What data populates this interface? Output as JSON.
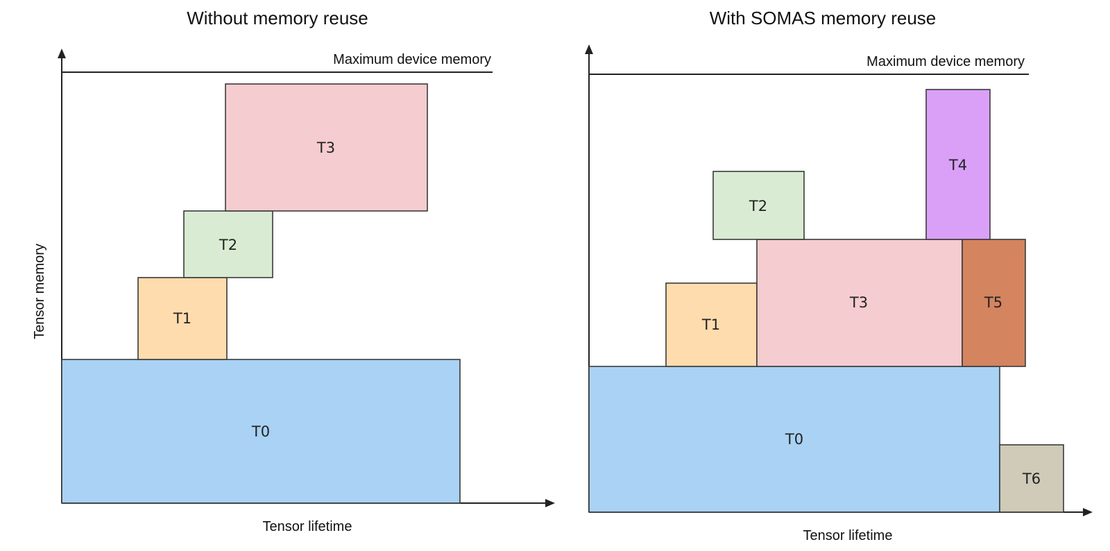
{
  "panels": [
    {
      "id": "without-reuse",
      "title": "Without memory reuse",
      "ylabel": "Tensor  memory",
      "xlabel": "Tensor lifetime",
      "limit_label": "Maximum device memory",
      "blocks": [
        {
          "label": "T0",
          "color": "#a9d2f4"
        },
        {
          "label": "T1",
          "color": "#fedcad"
        },
        {
          "label": "T2",
          "color": "#d9ebd3"
        },
        {
          "label": "T3",
          "color": "#f5cccf"
        }
      ]
    },
    {
      "id": "with-somas",
      "title": "With SOMAS memory reuse",
      "ylabel": "",
      "xlabel": "Tensor lifetime",
      "limit_label": "Maximum device memory",
      "blocks": [
        {
          "label": "T0",
          "color": "#a9d2f4"
        },
        {
          "label": "T1",
          "color": "#fedcad"
        },
        {
          "label": "T2",
          "color": "#d9ebd3"
        },
        {
          "label": "T3",
          "color": "#f5cccf"
        },
        {
          "label": "T4",
          "color": "#daa0f8"
        },
        {
          "label": "T5",
          "color": "#d4845e"
        },
        {
          "label": "T6",
          "color": "#cfcbb8"
        }
      ]
    }
  ]
}
